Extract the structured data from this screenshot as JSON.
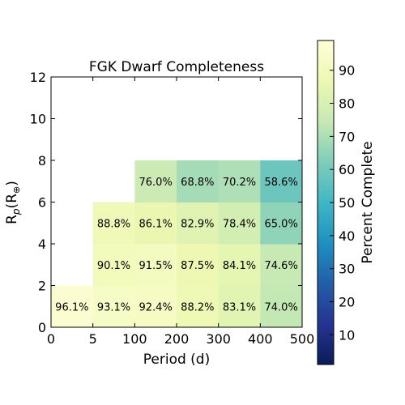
{
  "chart_data": {
    "type": "heatmap",
    "title": "FGK Dwarf Completeness",
    "xlabel": "Period (d)",
    "ylabel": "R",
    "ylabel_sub": "p",
    "ylabel_paren": "(R",
    "ylabel_sym": "⊕",
    "ylabel_close": ")",
    "x_ticks": [
      "0",
      "5",
      "100",
      "200",
      "300",
      "400",
      "500"
    ],
    "y_ticks": [
      "0",
      "2",
      "4",
      "6",
      "8",
      "10",
      "12"
    ],
    "ylim": [
      0,
      12
    ],
    "colorbar": {
      "label": "Percent Complete",
      "range": [
        1,
        99
      ],
      "ticks": [
        "10",
        "20",
        "30",
        "40",
        "50",
        "60",
        "70",
        "80",
        "90"
      ],
      "colormap": "YlGnBu"
    },
    "cells": [
      {
        "x": 0,
        "y": 0,
        "value": 96.1,
        "label": "96.1%"
      },
      {
        "x": 1,
        "y": 0,
        "value": 93.1,
        "label": "93.1%"
      },
      {
        "x": 2,
        "y": 0,
        "value": 92.4,
        "label": "92.4%"
      },
      {
        "x": 3,
        "y": 0,
        "value": 88.2,
        "label": "88.2%"
      },
      {
        "x": 4,
        "y": 0,
        "value": 83.1,
        "label": "83.1%"
      },
      {
        "x": 5,
        "y": 0,
        "value": 74.0,
        "label": "74.0%"
      },
      {
        "x": 1,
        "y": 1,
        "value": 90.1,
        "label": "90.1%"
      },
      {
        "x": 2,
        "y": 1,
        "value": 91.5,
        "label": "91.5%"
      },
      {
        "x": 3,
        "y": 1,
        "value": 87.5,
        "label": "87.5%"
      },
      {
        "x": 4,
        "y": 1,
        "value": 84.1,
        "label": "84.1%"
      },
      {
        "x": 5,
        "y": 1,
        "value": 74.6,
        "label": "74.6%"
      },
      {
        "x": 1,
        "y": 2,
        "value": 88.8,
        "label": "88.8%"
      },
      {
        "x": 2,
        "y": 2,
        "value": 86.1,
        "label": "86.1%"
      },
      {
        "x": 3,
        "y": 2,
        "value": 82.9,
        "label": "82.9%"
      },
      {
        "x": 4,
        "y": 2,
        "value": 78.4,
        "label": "78.4%"
      },
      {
        "x": 5,
        "y": 2,
        "value": 65.0,
        "label": "65.0%"
      },
      {
        "x": 2,
        "y": 3,
        "value": 76.0,
        "label": "76.0%"
      },
      {
        "x": 3,
        "y": 3,
        "value": 68.8,
        "label": "68.8%"
      },
      {
        "x": 4,
        "y": 3,
        "value": 70.2,
        "label": "70.2%"
      },
      {
        "x": 5,
        "y": 3,
        "value": 58.6,
        "label": "58.6%"
      }
    ]
  }
}
